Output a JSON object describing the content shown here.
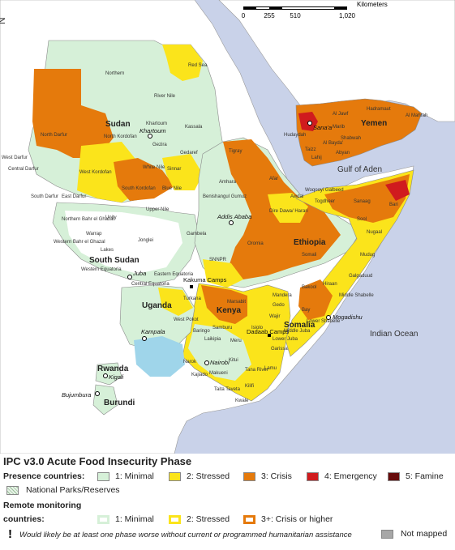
{
  "compass": {
    "label": "N"
  },
  "scale": {
    "unit": "Kilometers",
    "ticks": [
      "0",
      "255",
      "510",
      "1,020"
    ]
  },
  "labels": {
    "countries": {
      "sudan": "Sudan",
      "south_sudan": "South Sudan",
      "ethiopia": "Ethiopia",
      "somalia": "Somalia",
      "kenya": "Kenya",
      "uganda": "Uganda",
      "rwanda": "Rwanda",
      "burundi": "Burundi",
      "yemen": "Yemen"
    },
    "water": {
      "gulf_of_aden": "Gulf of Aden",
      "indian_ocean": "Indian Ocean"
    },
    "regions": {
      "northern": "Northern",
      "river_nile": "River Nile",
      "red_sea": "Red Sea",
      "north_darfur": "North Darfur",
      "north_kordofan": "North Kordofan",
      "khartoum_state": "Khartoum",
      "kassala": "Kassala",
      "gezira": "Gezira",
      "gedaref": "Gedaref",
      "west_kordofan": "West Kordofan",
      "white_nile": "White Nile",
      "sinnar": "Sinnar",
      "blue_nile": "Blue Nile",
      "south_kordofan": "South Kordofan",
      "west_darfur": "West Darfur",
      "central_darfur": "Central Darfur",
      "south_darfur": "South Darfur",
      "east_darfur": "East Darfur",
      "upper_nile": "Upper Nile",
      "unity": "Unity",
      "northern_bahr_el_ghazal": "Northern Bahr el Ghazal",
      "warrap": "Warrap",
      "western_bahr_el_ghazal": "Western Bahr el Ghazal",
      "jonglei": "Jonglei",
      "lakes": "Lakes",
      "western_equatoria": "Western Equatoria",
      "central_equatoria": "Central Equatoria",
      "eastern_equatoria": "Eastern Equatoria",
      "tigray": "Tigray",
      "amhara": "Amhara",
      "afar": "Afar",
      "benishangul_gumuz": "Benishangul Gumuz",
      "gambela": "Gambela",
      "oromia": "Oromia",
      "snnpr": "SNNPR",
      "somali_region": "Somali",
      "dire_dawa_harari": "Dire Dawa/ Harari",
      "woqooyi_galbeed": "Woqooyi Galbeed",
      "togdheer": "Togdheer",
      "sanaag": "Sanaag",
      "bari": "Bari",
      "sool": "Sool",
      "nugaal": "Nugaal",
      "mudug": "Mudug",
      "galgaduud": "Galgaduud",
      "hiraan": "Hiraan",
      "bakool": "Bakool",
      "gedo": "Gedo",
      "bay": "Bay",
      "middle_shabelle": "Middle Shabelle",
      "lower_shabelle": "Lower Shabelle",
      "middle_juba": "Middle Juba",
      "lower_juba": "Lower Juba",
      "awdal": "Awdal",
      "hadramaut": "Hadramaut",
      "al_mahrah": "Al Mahrah",
      "shabwah": "Shabwah",
      "abyan": "Abyan",
      "al_bayda": "Al Bayda'",
      "lahij": "Lahij",
      "taizz": "Taizz",
      "hodeidah": "Hudaydah",
      "marib": "Marib",
      "al_jawf": "Al Jawf",
      "mandera": "Mandera",
      "wajir": "Wajir",
      "marsabit": "Marsabit",
      "turkana": "Turkana",
      "isiolo": "Isiolo",
      "garissa": "Garissa",
      "tana_river": "Tana River",
      "lamu": "Lamu",
      "kilifi": "Kilifi",
      "kwale": "Kwale",
      "taita_taveta": "Taita Taveta",
      "kitui": "Kitui",
      "makueni": "Makueni",
      "kajiado": "Kajiado",
      "narok": "Narok",
      "samburu": "Samburu",
      "baringo": "Baringo",
      "west_pokot": "West Pokot",
      "meru": "Meru",
      "laikipia": "Laikipia"
    },
    "cities": {
      "khartoum": "Khartoum",
      "juba": "Juba",
      "addis_ababa": "Addis Ababa",
      "sanaa": "Sana'a",
      "kampala": "Kampala",
      "nairobi": "Nairobi",
      "mogadishu": "Mogadishu",
      "kigali": "Kigali",
      "bujumbura": "Bujumbura"
    },
    "camps": {
      "kakuma": "Kakuma Camps",
      "dadaab": "Dadaab Camps"
    }
  },
  "legend": {
    "title": "IPC v3.0 Acute Food Insecurity Phase",
    "presence_heading": "Presence countries:",
    "presence": [
      {
        "label": "1: Minimal",
        "color": "#d6f0d8"
      },
      {
        "label": "2: Stressed",
        "color": "#fbe41b"
      },
      {
        "label": "3: Crisis",
        "color": "#e57a0c"
      },
      {
        "label": "4: Emergency",
        "color": "#d01b1e"
      },
      {
        "label": "5: Famine",
        "color": "#670b0b"
      }
    ],
    "parks_label": "National Parks/Reserves",
    "remote_heading_line1": "Remote monitoring",
    "remote_heading_line2": "countries:",
    "remote": [
      {
        "label": "1: Minimal",
        "color": "#d6f0d8"
      },
      {
        "label": "2: Stressed",
        "color": "#fbe41b"
      },
      {
        "label": "3+: Crisis or higher",
        "color": "#e57a0c"
      }
    ],
    "assistance_symbol": "!",
    "assistance_note": "Would likely be at least one phase worse without current or programmed humanitarian assistance",
    "not_mapped_label": "Not mapped",
    "not_mapped_color": "#a7a7a7"
  },
  "colors": {
    "sea": "#c9d2e9",
    "land_other": "#ffffff",
    "minimal": "#d6f0d8",
    "stressed": "#fbe41b",
    "crisis": "#e57a0c",
    "emergency": "#d01b1e",
    "famine": "#670b0b",
    "lake": "#9fd5ea",
    "border": "#8a8a8a"
  }
}
